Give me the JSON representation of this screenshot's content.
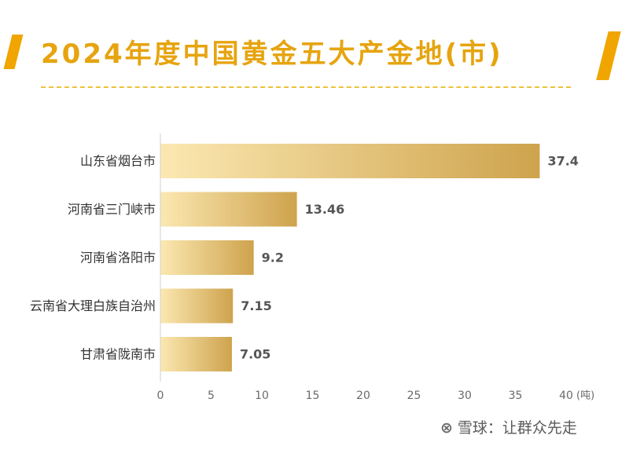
{
  "title": "2024年度中国黄金五大产金地(市)",
  "chart_data": {
    "type": "bar",
    "orientation": "horizontal",
    "title": "2024年度中国黄金五大产金地(市)",
    "categories": [
      "山东省烟台市",
      "河南省三门峡市",
      "河南省洛阳市",
      "云南省大理白族自治州",
      "甘肃省陇南市"
    ],
    "values": [
      37.4,
      13.46,
      9.2,
      7.15,
      7.05
    ],
    "value_labels": [
      "37.4",
      "13.46",
      "9.2",
      "7.15",
      "7.05"
    ],
    "xlim": [
      0,
      40
    ],
    "xticks": [
      0,
      5,
      10,
      15,
      20,
      25,
      30,
      35,
      40
    ],
    "xtick_labels": [
      "0",
      "5",
      "10",
      "15",
      "20",
      "25",
      "30",
      "35",
      "40"
    ],
    "unit": "(吨)",
    "grid": false,
    "bar_gradient": [
      "#fbe8b1",
      "#cea34d"
    ]
  },
  "watermark": {
    "logo": "⊗",
    "text": "雪球：让群众先走"
  }
}
